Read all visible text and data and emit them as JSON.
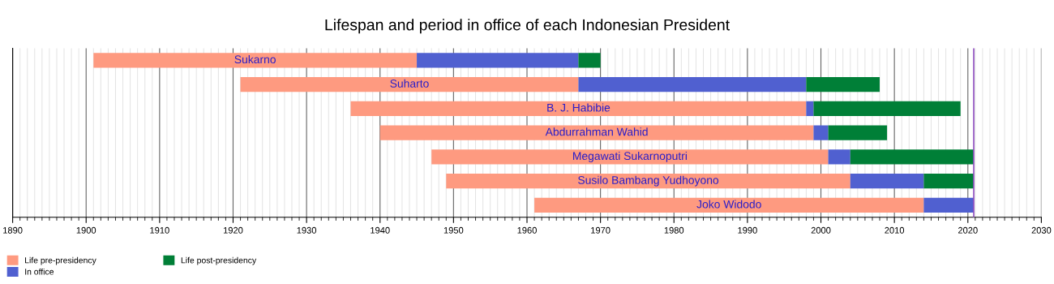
{
  "chart_data": {
    "type": "bar",
    "orientation": "horizontal",
    "title": "Lifespan and period in office of each Indonesian President",
    "categories": [
      "Sukarno",
      "Suharto",
      "B. J. Habibie",
      "Abdurrahman Wahid",
      "Megawati Sukarnoputri",
      "Susilo Bambang Yudhoyono",
      "Joko Widodo"
    ],
    "series": [
      {
        "name": "Life pre-presidency",
        "color": "#fe9a80",
        "base": [
          1901,
          1921,
          1936,
          1940,
          1947,
          1949,
          1961
        ],
        "values": [
          44,
          46,
          62,
          59,
          54,
          55,
          53
        ]
      },
      {
        "name": "In office",
        "color": "#5060d0",
        "base": [
          1945,
          1967,
          1998,
          1999,
          2001,
          2004,
          2014
        ],
        "values": [
          22,
          31,
          1,
          2,
          3,
          10,
          6.8
        ]
      },
      {
        "name": "Life post-presidency",
        "color": "#007f37",
        "base": [
          1967,
          1998,
          1999,
          2001,
          2004,
          2014,
          null
        ],
        "values": [
          3,
          10,
          20,
          8,
          16.8,
          6.8,
          null
        ]
      }
    ],
    "xlim": [
      1890,
      2030
    ],
    "xticks": [
      1890,
      1900,
      1910,
      1920,
      1930,
      1940,
      1950,
      1960,
      1970,
      1980,
      1990,
      2000,
      2010,
      2020,
      2030
    ],
    "ref_lines": [
      {
        "axis": "x",
        "value": 2020.8,
        "label": null,
        "color": "#9050c0"
      }
    ],
    "grid": "x",
    "legend": "bottom left",
    "tick_labels": "x"
  }
}
